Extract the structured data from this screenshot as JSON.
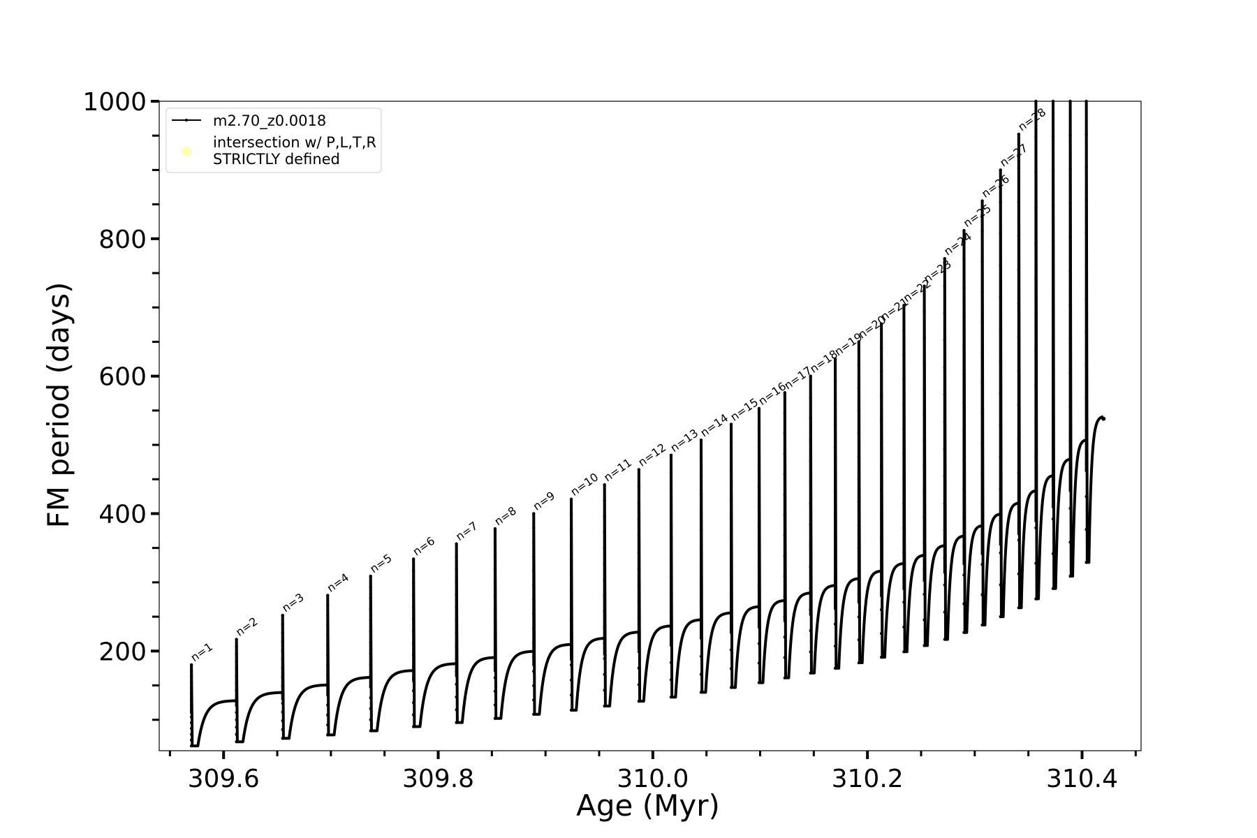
{
  "chart_data": {
    "type": "line",
    "title": "",
    "xlabel": "Age (Myr)",
    "ylabel": "FM period (days)",
    "xlim": [
      309.54,
      310.455
    ],
    "ylim": [
      55,
      1000
    ],
    "x_ticks": [
      309.6,
      309.8,
      310.0,
      310.2,
      310.4
    ],
    "x_tick_labels": [
      "309.6",
      "309.8",
      "310.0",
      "310.2",
      "310.4"
    ],
    "x_minor_ticks": [
      309.55,
      309.65,
      309.7,
      309.75,
      309.85,
      309.9,
      309.95,
      310.05,
      310.1,
      310.15,
      310.25,
      310.3,
      310.35,
      310.45
    ],
    "y_ticks": [
      200,
      400,
      600,
      800,
      1000
    ],
    "y_tick_labels": [
      "200",
      "400",
      "600",
      "800",
      "1000"
    ],
    "y_minor_ticks": [
      100,
      150,
      250,
      300,
      350,
      450,
      500,
      550,
      650,
      700,
      750,
      850,
      900,
      950
    ],
    "grid": false,
    "legend_position": "top-left",
    "legend": [
      {
        "label": "m2.70_z0.0018",
        "marker": "line",
        "color": "#000000"
      },
      {
        "label_lines": [
          "intersection w/ P,L,T,R",
          "STRICTLY defined"
        ],
        "marker": "circle",
        "color": "#ffffb3"
      }
    ],
    "series": [
      {
        "label_ref": "m2.70_z0.0018",
        "color": "#000000",
        "pulses": [
          {
            "n": "n=1",
            "x": 309.57,
            "peak": 180,
            "min": 62,
            "plateau": 128
          },
          {
            "n": "n=2",
            "x": 309.612,
            "peak": 217,
            "min": 68,
            "plateau": 140
          },
          {
            "n": "n=3",
            "x": 309.655,
            "peak": 252,
            "min": 73,
            "plateau": 151
          },
          {
            "n": "n=4",
            "x": 309.697,
            "peak": 281,
            "min": 78,
            "plateau": 162
          },
          {
            "n": "n=5",
            "x": 309.737,
            "peak": 309,
            "min": 84,
            "plateau": 172
          },
          {
            "n": "n=6",
            "x": 309.777,
            "peak": 334,
            "min": 90,
            "plateau": 182
          },
          {
            "n": "n=7",
            "x": 309.817,
            "peak": 356,
            "min": 96,
            "plateau": 191
          },
          {
            "n": "n=8",
            "x": 309.853,
            "peak": 378,
            "min": 102,
            "plateau": 200
          },
          {
            "n": "n=9",
            "x": 309.889,
            "peak": 400,
            "min": 108,
            "plateau": 210
          },
          {
            "n": "n=10",
            "x": 309.924,
            "peak": 421,
            "min": 114,
            "plateau": 219
          },
          {
            "n": "n=11",
            "x": 309.955,
            "peak": 442,
            "min": 120,
            "plateau": 228
          },
          {
            "n": "n=12",
            "x": 309.987,
            "peak": 464,
            "min": 127,
            "plateau": 237
          },
          {
            "n": "n=13",
            "x": 310.017,
            "peak": 485,
            "min": 133,
            "plateau": 246
          },
          {
            "n": "n=14",
            "x": 310.045,
            "peak": 507,
            "min": 140,
            "plateau": 256
          },
          {
            "n": "n=15",
            "x": 310.073,
            "peak": 530,
            "min": 147,
            "plateau": 265
          },
          {
            "n": "n=16",
            "x": 310.099,
            "peak": 553,
            "min": 154,
            "plateau": 274
          },
          {
            "n": "n=17",
            "x": 310.123,
            "peak": 576,
            "min": 161,
            "plateau": 285
          },
          {
            "n": "n=18",
            "x": 310.147,
            "peak": 600,
            "min": 168,
            "plateau": 296
          },
          {
            "n": "n=19",
            "x": 310.17,
            "peak": 625,
            "min": 175,
            "plateau": 306
          },
          {
            "n": "n=20",
            "x": 310.192,
            "peak": 650,
            "min": 183,
            "plateau": 317
          },
          {
            "n": "n=21",
            "x": 310.213,
            "peak": 676,
            "min": 191,
            "plateau": 328
          },
          {
            "n": "n=22",
            "x": 310.234,
            "peak": 703,
            "min": 199,
            "plateau": 340
          },
          {
            "n": "n=23",
            "x": 310.253,
            "peak": 731,
            "min": 208,
            "plateau": 354
          },
          {
            "n": "n=24",
            "x": 310.272,
            "peak": 771,
            "min": 217,
            "plateau": 368
          },
          {
            "n": "n=25",
            "x": 310.29,
            "peak": 812,
            "min": 227,
            "plateau": 383
          },
          {
            "n": "n=26",
            "x": 310.307,
            "peak": 855,
            "min": 238,
            "plateau": 400
          },
          {
            "n": "n=27",
            "x": 310.324,
            "peak": 900,
            "min": 250,
            "plateau": 416
          },
          {
            "n": "n=28",
            "x": 310.341,
            "peak": 952,
            "min": 263,
            "plateau": 434
          },
          {
            "n": "",
            "x": 310.357,
            "peak": 1000,
            "min": 276,
            "plateau": 456
          },
          {
            "n": "",
            "x": 310.373,
            "peak": 1000,
            "min": 291,
            "plateau": 480
          },
          {
            "n": "",
            "x": 310.389,
            "peak": 1000,
            "min": 309,
            "plateau": 508
          },
          {
            "n": "",
            "x": 310.404,
            "peak": 1000,
            "min": 329,
            "plateau": 542
          }
        ],
        "end_x": 310.42
      }
    ]
  }
}
